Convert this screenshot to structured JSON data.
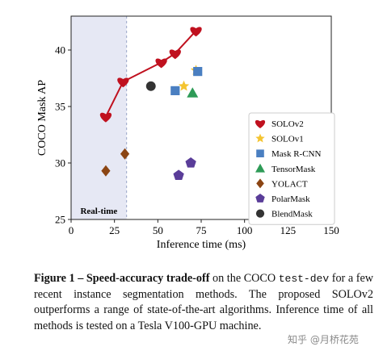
{
  "chart_data": {
    "type": "scatter",
    "xlabel": "Inference time (ms)",
    "ylabel": "COCO Mask AP",
    "xlim": [
      0,
      150
    ],
    "ylim": [
      25,
      43
    ],
    "xticks": [
      "0",
      "25",
      "50",
      "75",
      "100",
      "125",
      "150"
    ],
    "yticks": [
      "25",
      "30",
      "35",
      "40"
    ],
    "grid": false,
    "legend": "right",
    "region": {
      "label": "Real-time",
      "x_range": [
        0,
        32
      ]
    },
    "series": [
      {
        "name": "SOLOv2",
        "marker": "heart",
        "color": "#c0111f",
        "line": true,
        "points": [
          [
            20,
            34.1
          ],
          [
            30,
            37.2
          ],
          [
            52,
            38.9
          ],
          [
            60,
            39.7
          ],
          [
            72,
            41.7
          ]
        ]
      },
      {
        "name": "SOLOv1",
        "marker": "star",
        "color": "#f4c430",
        "points": [
          [
            65,
            36.8
          ],
          [
            72,
            38.2
          ]
        ]
      },
      {
        "name": "Mask R-CNN",
        "marker": "square",
        "color": "#4a7fc1",
        "points": [
          [
            60,
            36.4
          ],
          [
            73,
            38.1
          ]
        ]
      },
      {
        "name": "TensorMask",
        "marker": "triangle",
        "color": "#2e9b57",
        "points": [
          [
            70,
            36.2
          ]
        ]
      },
      {
        "name": "YOLACT",
        "marker": "diamond",
        "color": "#8b4513",
        "points": [
          [
            20,
            29.3
          ],
          [
            31,
            30.8
          ]
        ]
      },
      {
        "name": "PolarMask",
        "marker": "pentagon",
        "color": "#5a3d99",
        "points": [
          [
            62,
            28.9
          ],
          [
            69,
            30
          ]
        ]
      },
      {
        "name": "BlendMask",
        "marker": "circle",
        "color": "#333333",
        "points": [
          [
            46,
            36.8
          ]
        ]
      }
    ]
  },
  "caption": {
    "figure_label": "Figure 1",
    "dash": " – ",
    "title": "Speed-accuracy trade-off",
    "text1": " on the COCO ",
    "code": "test-dev",
    "text2": " for a few recent instance segmentation methods. The proposed SOLOv2 outperforms a range of state-of-the-art algorithms. Inference time of all methods is tested on a Tesla V100-GPU machine."
  },
  "watermark": "知乎 @月桥花苑"
}
